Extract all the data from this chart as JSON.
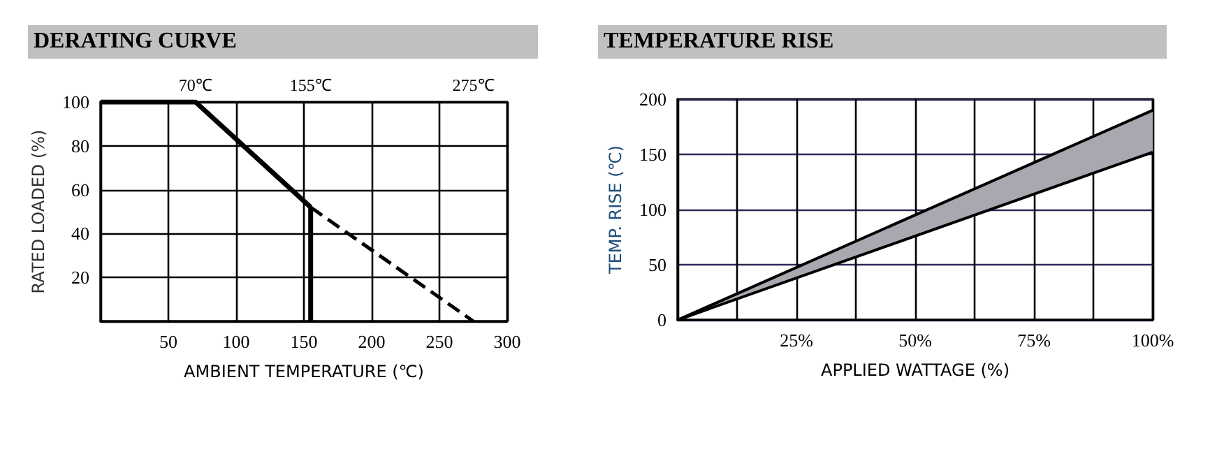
{
  "chart_data": [
    {
      "type": "line",
      "title": "DERATING CURVE",
      "xlabel": "AMBIENT TEMPERATURE (℃)",
      "ylabel": "RATED LOADED (%)",
      "xlim": [
        0,
        300
      ],
      "xticks": [
        50,
        100,
        150,
        200,
        250,
        300
      ],
      "ylim": [
        0,
        100
      ],
      "yticks": [
        20,
        40,
        60,
        80,
        100
      ],
      "grid": true,
      "marker": "none",
      "series": [
        {
          "color": "#000000",
          "x": [
            0,
            70,
            155
          ],
          "values": [
            100,
            100,
            52
          ],
          "line_style": "solid"
        },
        {
          "color": "#000000",
          "x": [
            155,
            155
          ],
          "values": [
            52,
            0
          ],
          "line_style": "solid"
        },
        {
          "color": "#000000",
          "x": [
            155,
            275
          ],
          "values": [
            52,
            0
          ],
          "line_style": "dashed"
        }
      ],
      "annotations": [
        "70℃",
        "155℃",
        "275℃"
      ]
    },
    {
      "type": "line",
      "title": "TEMPERATURE RISE",
      "xlabel": "APPLIED WATTAGE (%)",
      "ylabel": "TEMP. RISE (℃)",
      "xlim": [
        0,
        100
      ],
      "xticks": [
        {
          "value": 12.5,
          "label": null
        },
        {
          "value": 25,
          "label": "25%"
        },
        {
          "value": 37.5,
          "label": null
        },
        {
          "value": 50,
          "label": "50%"
        },
        {
          "value": 62.5,
          "label": null
        },
        {
          "value": 75,
          "label": "75%"
        },
        {
          "value": 87.5,
          "label": null
        },
        {
          "value": 100,
          "label": "100%"
        }
      ],
      "ylim": [
        0,
        200
      ],
      "yticks": [
        0,
        50,
        100,
        150,
        200
      ],
      "grid": true,
      "marker": "none",
      "series": [
        {
          "color": "#000000",
          "x": [
            0,
            100
          ],
          "values": [
            0,
            152
          ]
        },
        {
          "color": "#000000",
          "x": [
            0,
            100
          ],
          "values": [
            0,
            190
          ],
          "lower": [
            0,
            152
          ],
          "upper": [
            0,
            190
          ]
        }
      ]
    }
  ]
}
